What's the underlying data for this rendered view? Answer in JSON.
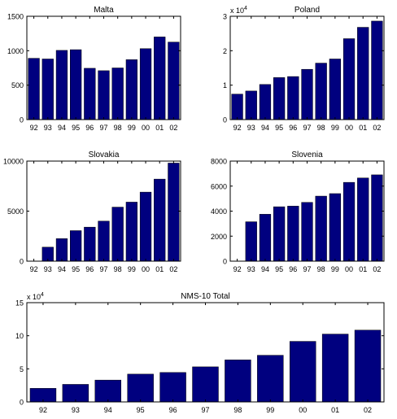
{
  "chart_data": [
    {
      "type": "bar",
      "title": "Malta",
      "categories": [
        "92",
        "93",
        "94",
        "95",
        "96",
        "97",
        "98",
        "99",
        "00",
        "01",
        "02"
      ],
      "values": [
        890,
        880,
        1005,
        1015,
        745,
        710,
        750,
        870,
        1030,
        1200,
        1125
      ],
      "ylim": [
        0,
        1500
      ],
      "yticks": [
        0,
        500,
        1000,
        1500
      ],
      "ytick_labels": [
        "0",
        "500",
        "1000",
        "1500"
      ],
      "exponent": "",
      "xlabel": "",
      "ylabel": "",
      "grid": false,
      "bar_color": "#00007f"
    },
    {
      "type": "bar",
      "title": "Poland",
      "categories": [
        "92",
        "93",
        "94",
        "95",
        "96",
        "97",
        "98",
        "99",
        "00",
        "01",
        "02"
      ],
      "values": [
        7400,
        8300,
        10200,
        12200,
        12500,
        14600,
        16400,
        17600,
        23500,
        26800,
        28600
      ],
      "ylim": [
        0,
        30000
      ],
      "yticks": [
        0,
        10000,
        20000,
        30000
      ],
      "ytick_labels": [
        "0",
        "1",
        "2",
        "3"
      ],
      "exponent": "4",
      "xlabel": "",
      "ylabel": "",
      "grid": false,
      "bar_color": "#00007f"
    },
    {
      "type": "bar",
      "title": "Slovakia",
      "categories": [
        "92",
        "93",
        "94",
        "95",
        "96",
        "97",
        "98",
        "99",
        "00",
        "01",
        "02"
      ],
      "values": [
        0,
        1400,
        2250,
        3050,
        3400,
        4000,
        5400,
        5900,
        6900,
        8200,
        9800
      ],
      "ylim": [
        0,
        10000
      ],
      "yticks": [
        0,
        5000,
        10000
      ],
      "ytick_labels": [
        "0",
        "5000",
        "10000"
      ],
      "exponent": "",
      "xlabel": "",
      "ylabel": "",
      "grid": false,
      "bar_color": "#00007f"
    },
    {
      "type": "bar",
      "title": "Slovenia",
      "categories": [
        "92",
        "93",
        "94",
        "95",
        "96",
        "97",
        "98",
        "99",
        "00",
        "01",
        "02"
      ],
      "values": [
        0,
        3150,
        3750,
        4350,
        4400,
        4700,
        5200,
        5400,
        6300,
        6650,
        6900
      ],
      "ylim": [
        0,
        8000
      ],
      "yticks": [
        0,
        2000,
        4000,
        6000,
        8000
      ],
      "ytick_labels": [
        "0",
        "2000",
        "4000",
        "6000",
        "8000"
      ],
      "exponent": "",
      "xlabel": "",
      "ylabel": "",
      "grid": false,
      "bar_color": "#00007f"
    },
    {
      "type": "bar",
      "title": "NMS-10 Total",
      "categories": [
        "92",
        "93",
        "94",
        "95",
        "96",
        "97",
        "98",
        "99",
        "00",
        "01",
        "02"
      ],
      "values": [
        20500,
        26500,
        33000,
        42000,
        44500,
        53000,
        63500,
        70500,
        91500,
        102500,
        108500
      ],
      "ylim": [
        0,
        150000
      ],
      "yticks": [
        0,
        50000,
        100000,
        150000
      ],
      "ytick_labels": [
        "0",
        "5",
        "10",
        "15"
      ],
      "exponent": "4",
      "xlabel": "",
      "ylabel": "",
      "grid": false,
      "bar_color": "#00007f"
    }
  ]
}
